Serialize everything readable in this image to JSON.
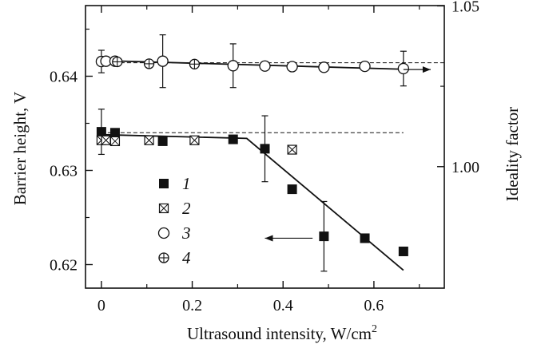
{
  "chart_data": {
    "type": "scatter",
    "xlabel": "Ultrasound intensity,  W/cm",
    "xlabel_sup": "2",
    "ylabel": "Barrier height,  V",
    "y2label": "Ideality factor",
    "xlim": [
      -0.035,
      0.755
    ],
    "ylim": [
      0.6175,
      0.6475
    ],
    "y2lim": [
      0.9622,
      1.0501
    ],
    "x_ticks": [
      0,
      0.2,
      0.4,
      0.6
    ],
    "x_tick_labels": [
      "0",
      "0.2",
      "0.4",
      "0.6"
    ],
    "y_ticks": [
      0.62,
      0.63,
      0.64
    ],
    "y_tick_labels": [
      "0.62",
      "0.63",
      "0.64"
    ],
    "y2_ticks": [
      1.0,
      1.05
    ],
    "y2_tick_labels": [
      "1.00",
      "1.05"
    ],
    "grid": false,
    "legend_position": "center-left",
    "series": [
      {
        "name": "1",
        "marker": "filled-square",
        "axis": "left",
        "points": [
          [
            0,
            0.6341
          ],
          [
            0.03,
            0.634
          ],
          [
            0.135,
            0.6331
          ],
          [
            0.29,
            0.6333
          ],
          [
            0.36,
            0.6323
          ],
          [
            0.42,
            0.628
          ],
          [
            0.49,
            0.623
          ],
          [
            0.58,
            0.6228
          ],
          [
            0.665,
            0.6214
          ]
        ]
      },
      {
        "name": "2",
        "marker": "crossed-square",
        "axis": "left",
        "points": [
          [
            0,
            0.6332
          ],
          [
            0.01,
            0.6332
          ],
          [
            0.03,
            0.6331
          ],
          [
            0.105,
            0.6332
          ],
          [
            0.205,
            0.6332
          ],
          [
            0.42,
            0.6322
          ]
        ]
      },
      {
        "name": "3",
        "marker": "open-circle",
        "axis": "right",
        "points": [
          [
            0,
            1.0327
          ],
          [
            0.01,
            1.0328
          ],
          [
            0.03,
            1.0328
          ],
          [
            0.135,
            1.0328
          ],
          [
            0.29,
            1.0314
          ],
          [
            0.36,
            1.0313
          ],
          [
            0.42,
            1.0311
          ],
          [
            0.49,
            1.0309
          ],
          [
            0.58,
            1.0312
          ],
          [
            0.665,
            1.0305
          ]
        ]
      },
      {
        "name": "4",
        "marker": "circle-plus",
        "axis": "right",
        "points": [
          [
            0.035,
            1.0326
          ],
          [
            0.105,
            1.032
          ],
          [
            0.205,
            1.0319
          ]
        ]
      }
    ],
    "error_bars": [
      {
        "axis": "left",
        "x": 0,
        "y": 0.6341,
        "err": 0.0024
      },
      {
        "axis": "left",
        "x": 0.36,
        "y": 0.6323,
        "err": 0.0035
      },
      {
        "axis": "left",
        "x": 0.49,
        "y": 0.623,
        "err": 0.0037
      },
      {
        "axis": "right",
        "x": 0,
        "y": 1.0327,
        "err": 0.0035
      },
      {
        "axis": "right",
        "x": 0.135,
        "y": 1.0328,
        "err": 0.0082
      },
      {
        "axis": "right",
        "x": 0.29,
        "y": 1.0314,
        "err": 0.0068
      },
      {
        "axis": "right",
        "x": 0.665,
        "y": 1.0305,
        "err": 0.0054
      }
    ],
    "fit_lines": [
      {
        "axis": "left",
        "points": [
          [
            0,
            0.6338
          ],
          [
            0.32,
            0.6334
          ],
          [
            0.665,
            0.6194
          ]
        ]
      },
      {
        "axis": "right",
        "points": [
          [
            0,
            1.033
          ],
          [
            0.665,
            1.0303
          ]
        ]
      }
    ],
    "reference_lines": [
      {
        "axis": "left",
        "y": 0.634,
        "x_from": 0,
        "x_to": 0.665
      },
      {
        "axis": "right",
        "y": 1.0323,
        "x_from": 0,
        "x_to": 0.755
      }
    ],
    "axis_arrows": [
      {
        "axis": "left",
        "y": 0.6228,
        "x_from": 0.465,
        "x_to": 0.36,
        "points_to": "left"
      },
      {
        "axis": "right",
        "y": 1.0302,
        "x_from": 0.665,
        "x_to": 0.725,
        "points_to": "right"
      }
    ]
  }
}
